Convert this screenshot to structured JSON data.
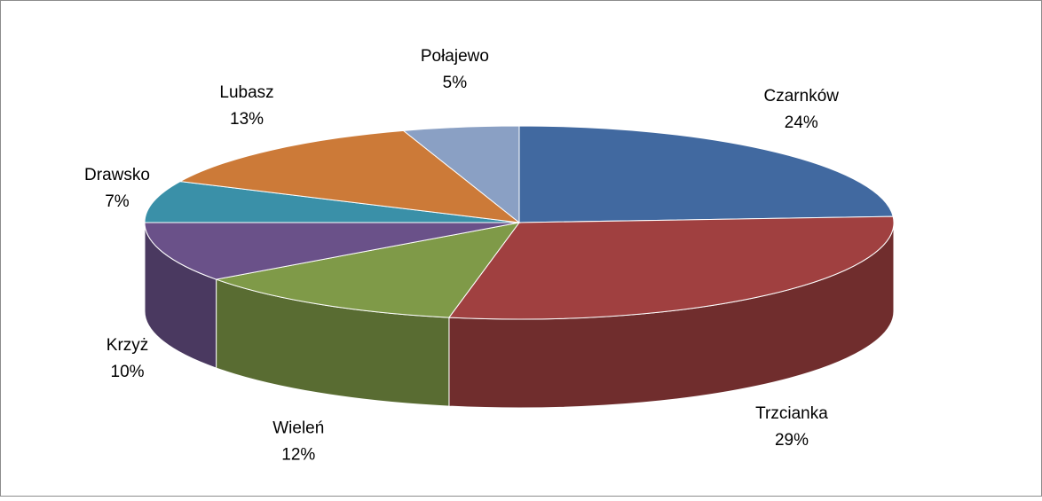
{
  "chart_data": {
    "type": "pie3d",
    "categories": [
      "Czarnków",
      "Trzcianka",
      "Wieleń",
      "Krzyż",
      "Drawsko",
      "Lubasz",
      "Połajewo"
    ],
    "values": [
      24,
      29,
      12,
      10,
      7,
      13,
      5
    ],
    "value_labels": [
      "24%",
      "29%",
      "12%",
      "10%",
      "7%",
      "13%",
      "5%"
    ],
    "colors": [
      "#4169a0",
      "#a04040",
      "#7f9a48",
      "#6a5189",
      "#3a90a8",
      "#cc7a38",
      "#8aa0c4"
    ]
  }
}
